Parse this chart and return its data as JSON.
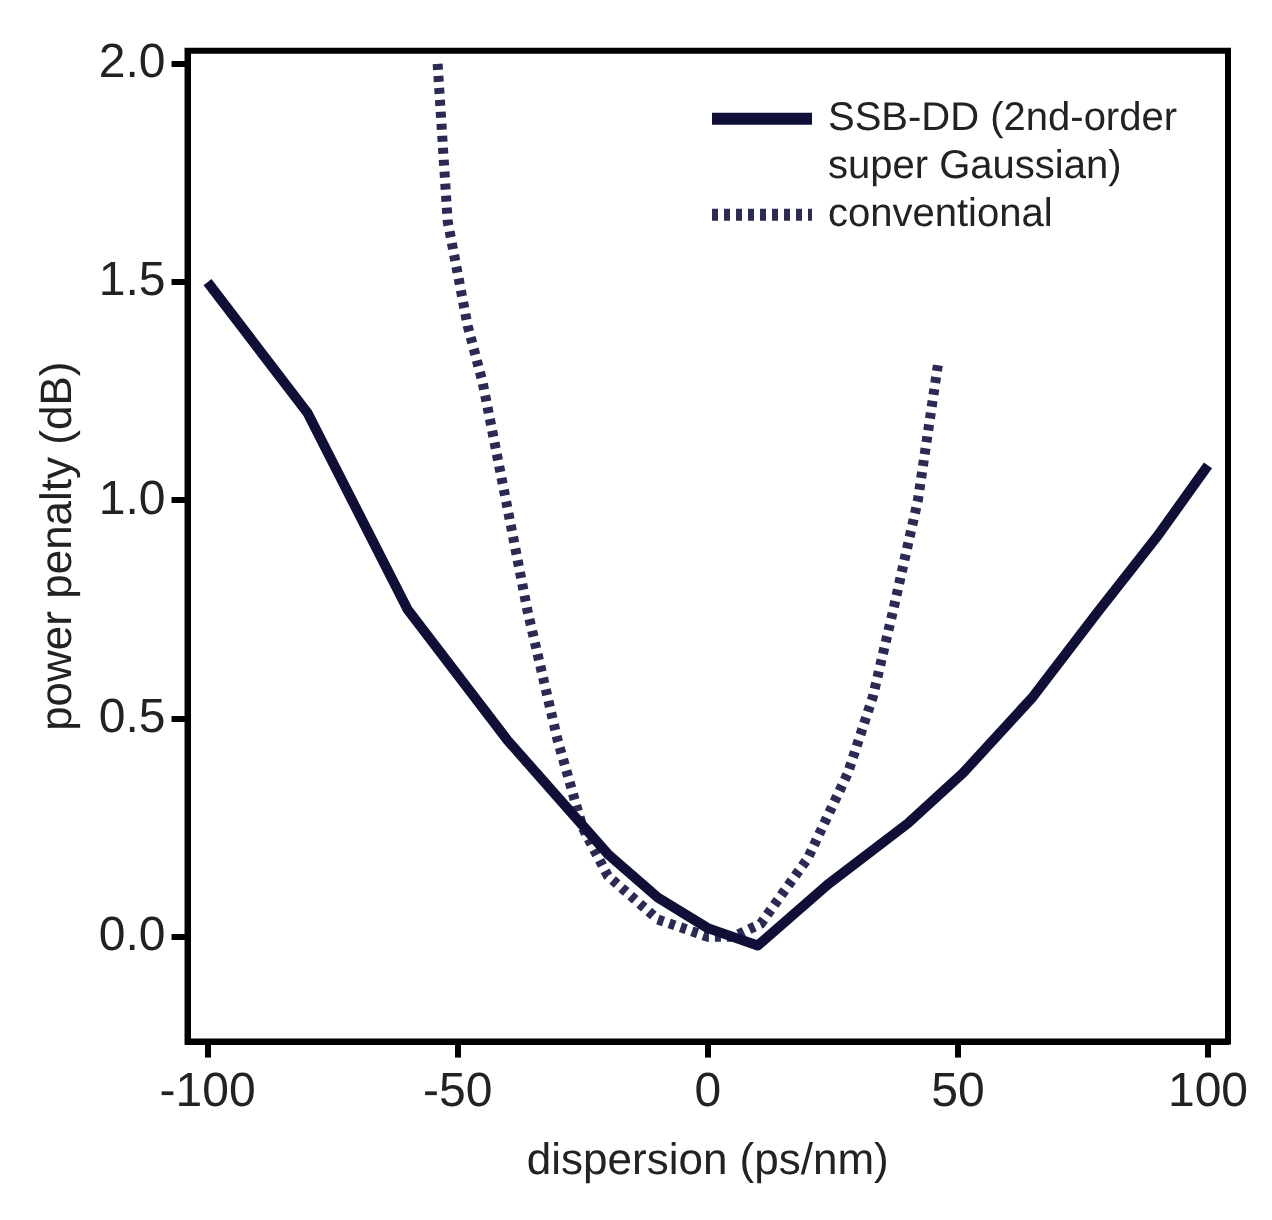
{
  "chart_data": {
    "type": "line",
    "xlabel": "dispersion (ps/nm)",
    "ylabel": "power penalty (dB)",
    "xlim": [
      -104,
      104
    ],
    "xticks": [
      -100,
      -50,
      0,
      50,
      100
    ],
    "ylim": [
      -0.24,
      2.03
    ],
    "yticks": [
      {
        "value": 0,
        "label": "0.0"
      },
      0.5,
      {
        "value": 1,
        "label": "1.0"
      },
      1.5,
      {
        "value": 2,
        "label": "2.0"
      }
    ],
    "grid": false,
    "legend": "top right",
    "marker": "none",
    "series": [
      {
        "name": "SSB-DD (2nd-order super Gaussian)",
        "color": "#0f0f38",
        "line_style": "solid",
        "x": [
          -100,
          -80,
          -60,
          -40,
          -20,
          -10,
          0,
          5,
          10,
          24,
          40,
          51,
          65,
          78,
          90,
          100
        ],
        "values": [
          1.5,
          1.2,
          0.75,
          0.45,
          0.19,
          0.09,
          0.02,
          0.0,
          -0.02,
          0.12,
          0.26,
          0.375,
          0.55,
          0.745,
          0.92,
          1.08
        ]
      },
      {
        "name": "conventional",
        "color": "#2a2a55",
        "line_style": "dotted",
        "x": [
          -54,
          -52,
          -48,
          -45,
          -40,
          -36,
          -30,
          -25,
          -20,
          -10,
          0,
          5,
          10.6,
          20,
          28,
          33,
          37,
          42,
          46
        ],
        "values": [
          2.0,
          1.64,
          1.4,
          1.27,
          0.98,
          0.745,
          0.45,
          0.25,
          0.14,
          0.04,
          0.0,
          0.0,
          0.03,
          0.18,
          0.375,
          0.55,
          0.745,
          1.0,
          1.31
        ]
      }
    ]
  }
}
